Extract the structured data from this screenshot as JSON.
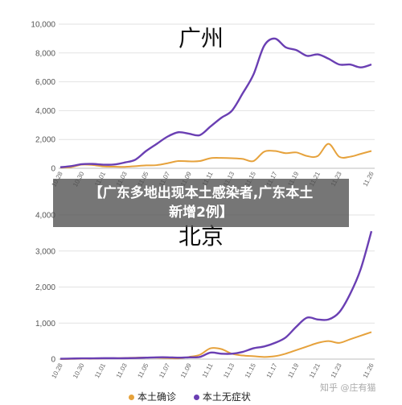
{
  "colors": {
    "local_confirmed": "#e6a23c",
    "local_asymptomatic": "#6a3fb3"
  },
  "banner": {
    "line1": "【广东多地出现本土感染者,广东本土",
    "line2": "新增2例】"
  },
  "legend": {
    "confirmed": "本土确诊",
    "asymptomatic": "本土无症状"
  },
  "watermark": "知乎 @庄有猫",
  "chart_data": [
    {
      "type": "line",
      "title": "广州",
      "ylim": [
        0,
        10000
      ],
      "yticks": [
        "0",
        "2,000",
        "4,000",
        "6,000",
        "8,000",
        "10,000"
      ],
      "ytick_values": [
        0,
        2000,
        4000,
        6000,
        8000,
        10000
      ],
      "xticks": [
        "10.28",
        "10.30",
        "11.01",
        "11.03",
        "11.05",
        "11.07",
        "11.09",
        "11.11",
        "11.13",
        "11.15",
        "11.17",
        "11.19",
        "11.21",
        "11.23",
        "11.26"
      ],
      "xtick_index": [
        0,
        2,
        4,
        6,
        8,
        10,
        12,
        14,
        16,
        18,
        20,
        22,
        24,
        26,
        29
      ],
      "series": [
        {
          "key": "confirmed",
          "values": [
            40,
            80,
            250,
            230,
            130,
            110,
            100,
            150,
            200,
            220,
            350,
            500,
            480,
            500,
            700,
            720,
            700,
            650,
            500,
            1150,
            1200,
            1050,
            1100,
            850,
            850,
            1700,
            800,
            800,
            1000,
            1200
          ]
        },
        {
          "key": "asymptomatic",
          "values": [
            70,
            150,
            280,
            300,
            250,
            260,
            400,
            600,
            1200,
            1700,
            2200,
            2500,
            2400,
            2300,
            2900,
            3500,
            4000,
            5200,
            6500,
            8500,
            9000,
            8400,
            8200,
            7800,
            7900,
            7600,
            7200,
            7200,
            7000,
            7200
          ]
        }
      ]
    },
    {
      "type": "line",
      "title": "北京",
      "ylim": [
        0,
        4000
      ],
      "yticks": [
        "0",
        "1,000",
        "2,000",
        "3,000",
        "4,000"
      ],
      "ytick_values": [
        0,
        1000,
        2000,
        3000,
        4000
      ],
      "xticks": [
        "10.28",
        "10.30",
        "11.01",
        "11.03",
        "11.05",
        "11.07",
        "11.09",
        "11.11",
        "11.13",
        "11.15",
        "11.17",
        "11.19",
        "11.21",
        "11.23",
        "11.26"
      ],
      "xtick_index": [
        0,
        2,
        4,
        6,
        8,
        10,
        12,
        14,
        16,
        18,
        20,
        22,
        24,
        26,
        29
      ],
      "series": [
        {
          "key": "confirmed",
          "values": [
            0,
            5,
            10,
            15,
            20,
            25,
            30,
            40,
            45,
            40,
            30,
            20,
            60,
            120,
            300,
            280,
            150,
            100,
            80,
            60,
            80,
            150,
            250,
            350,
            450,
            500,
            450,
            550,
            650,
            750
          ]
        },
        {
          "key": "asymptomatic",
          "values": [
            10,
            15,
            20,
            20,
            25,
            25,
            25,
            30,
            40,
            50,
            50,
            40,
            50,
            60,
            180,
            150,
            150,
            200,
            300,
            350,
            450,
            600,
            900,
            1150,
            1100,
            1100,
            1300,
            1800,
            2500,
            3550
          ]
        }
      ]
    }
  ]
}
